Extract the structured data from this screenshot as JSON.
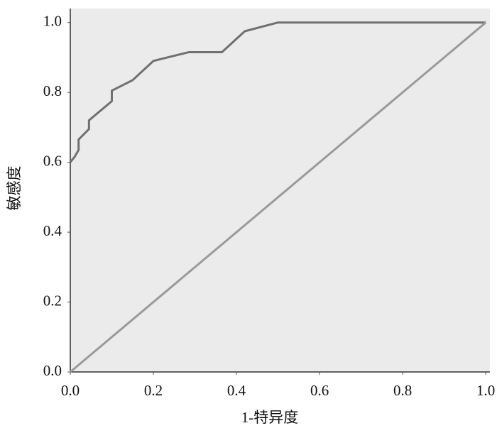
{
  "chart_data": {
    "type": "line",
    "x_label": "1-特异度",
    "y_label": "敏感度",
    "xlim": [
      0,
      1.01
    ],
    "ylim": [
      0,
      1.04
    ],
    "xticks": [
      {
        "value": 0,
        "label": "0.0"
      },
      0.2,
      0.4,
      0.6,
      0.8,
      {
        "value": 1,
        "label": "1.0"
      }
    ],
    "yticks": [
      {
        "value": 0,
        "label": "0.0"
      },
      0.2,
      0.4,
      0.6,
      0.8,
      {
        "value": 1,
        "label": "1.0"
      }
    ],
    "series": [
      {
        "color": "#707070",
        "x": [
          0,
          0.01,
          0.02,
          0.02,
          0.045,
          0.045,
          0.1,
          0.1,
          0.15,
          0.2,
          0.285,
          0.365,
          0.42,
          0.5,
          1
        ],
        "values": [
          0.6,
          0.615,
          0.635,
          0.665,
          0.695,
          0.72,
          0.775,
          0.805,
          0.835,
          0.89,
          0.915,
          0.915,
          0.975,
          1,
          1
        ]
      },
      {
        "color": "#9a9a9a",
        "x": [
          0,
          1
        ],
        "values": [
          0,
          1
        ]
      }
    ]
  }
}
